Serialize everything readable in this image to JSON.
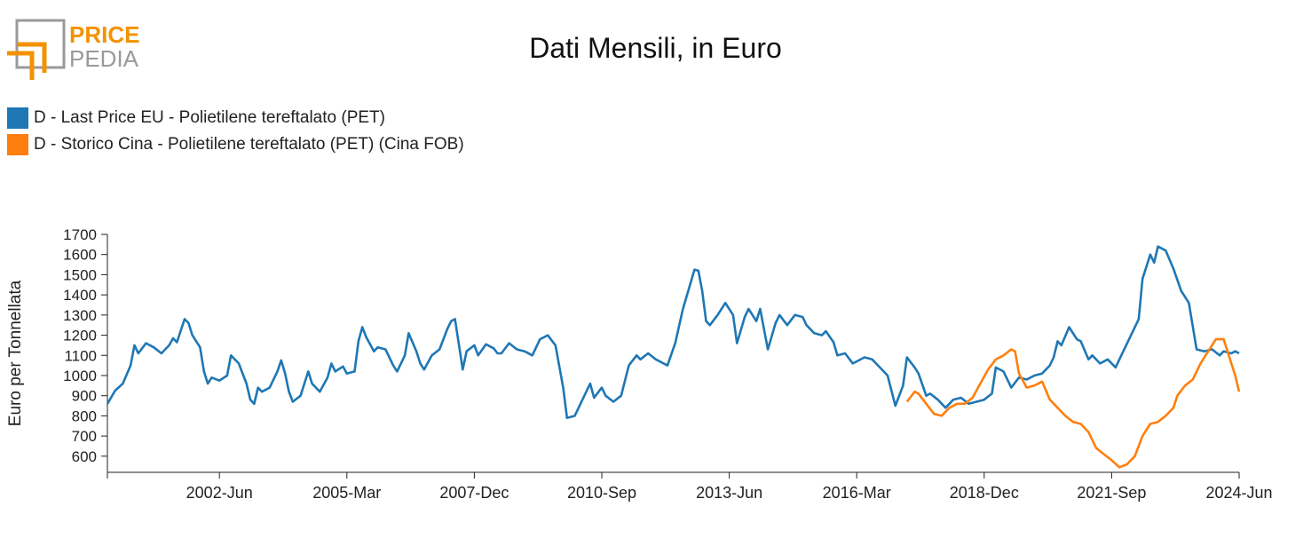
{
  "logo": {
    "word_top": "PRICE",
    "word_bottom": "PEDIA"
  },
  "colors": {
    "series_1": "#1f77b4",
    "series_2": "#ff7f0e",
    "logo_orange": "#f39200",
    "logo_grey": "#9a9a9a"
  },
  "chart_data": {
    "type": "line",
    "title": "Dati Mensili, in Euro",
    "xlabel": "",
    "ylabel": "Euro per Tonnellata",
    "x_start": "2000-01",
    "x_end": "2024-06",
    "xticks": [
      "2002-Jun",
      "2005-Mar",
      "2007-Dec",
      "2010-Sep",
      "2013-Jun",
      "2016-Mar",
      "2018-Dec",
      "2021-Sep",
      "2024-Jun"
    ],
    "ylim": [
      520,
      1700
    ],
    "yticks": [
      600,
      700,
      800,
      900,
      1000,
      1100,
      1200,
      1300,
      1400,
      1500,
      1600,
      1700
    ],
    "grid": false,
    "legend_position": "top-left",
    "series": [
      {
        "name": "D - Last Price EU - Polietilene tereftalato (PET)",
        "color": "#1f77b4",
        "points": [
          [
            "2000-01",
            860
          ],
          [
            "2000-03",
            925
          ],
          [
            "2000-05",
            960
          ],
          [
            "2000-07",
            1050
          ],
          [
            "2000-08",
            1150
          ],
          [
            "2000-09",
            1110
          ],
          [
            "2000-11",
            1160
          ],
          [
            "2001-01",
            1140
          ],
          [
            "2001-03",
            1110
          ],
          [
            "2001-05",
            1150
          ],
          [
            "2001-06",
            1185
          ],
          [
            "2001-07",
            1165
          ],
          [
            "2001-09",
            1280
          ],
          [
            "2001-10",
            1260
          ],
          [
            "2001-11",
            1200
          ],
          [
            "2002-01",
            1140
          ],
          [
            "2002-02",
            1020
          ],
          [
            "2002-03",
            960
          ],
          [
            "2002-04",
            990
          ],
          [
            "2002-06",
            975
          ],
          [
            "2002-08",
            1000
          ],
          [
            "2002-09",
            1100
          ],
          [
            "2002-11",
            1060
          ],
          [
            "2003-01",
            960
          ],
          [
            "2003-02",
            880
          ],
          [
            "2003-03",
            860
          ],
          [
            "2003-04",
            940
          ],
          [
            "2003-05",
            920
          ],
          [
            "2003-07",
            940
          ],
          [
            "2003-09",
            1020
          ],
          [
            "2003-10",
            1075
          ],
          [
            "2003-11",
            1010
          ],
          [
            "2003-12",
            920
          ],
          [
            "2004-01",
            870
          ],
          [
            "2004-03",
            900
          ],
          [
            "2004-05",
            1020
          ],
          [
            "2004-06",
            960
          ],
          [
            "2004-08",
            920
          ],
          [
            "2004-10",
            990
          ],
          [
            "2004-11",
            1060
          ],
          [
            "2004-12",
            1020
          ],
          [
            "2005-02",
            1045
          ],
          [
            "2005-03",
            1010
          ],
          [
            "2005-05",
            1020
          ],
          [
            "2005-06",
            1170
          ],
          [
            "2005-07",
            1240
          ],
          [
            "2005-08",
            1190
          ],
          [
            "2005-10",
            1120
          ],
          [
            "2005-11",
            1140
          ],
          [
            "2006-01",
            1130
          ],
          [
            "2006-03",
            1050
          ],
          [
            "2006-04",
            1020
          ],
          [
            "2006-06",
            1100
          ],
          [
            "2006-07",
            1210
          ],
          [
            "2006-09",
            1120
          ],
          [
            "2006-10",
            1060
          ],
          [
            "2006-11",
            1030
          ],
          [
            "2007-01",
            1100
          ],
          [
            "2007-03",
            1130
          ],
          [
            "2007-05",
            1230
          ],
          [
            "2007-06",
            1270
          ],
          [
            "2007-07",
            1280
          ],
          [
            "2007-09",
            1030
          ],
          [
            "2007-10",
            1120
          ],
          [
            "2007-12",
            1150
          ],
          [
            "2008-01",
            1100
          ],
          [
            "2008-03",
            1155
          ],
          [
            "2008-05",
            1135
          ],
          [
            "2008-06",
            1110
          ],
          [
            "2008-07",
            1110
          ],
          [
            "2008-09",
            1160
          ],
          [
            "2008-11",
            1130
          ],
          [
            "2009-01",
            1120
          ],
          [
            "2009-03",
            1100
          ],
          [
            "2009-05",
            1180
          ],
          [
            "2009-07",
            1200
          ],
          [
            "2009-09",
            1150
          ],
          [
            "2009-11",
            940
          ],
          [
            "2009-12",
            790
          ],
          [
            "2010-02",
            800
          ],
          [
            "2010-04",
            880
          ],
          [
            "2010-06",
            960
          ],
          [
            "2010-07",
            890
          ],
          [
            "2010-09",
            940
          ],
          [
            "2010-10",
            900
          ],
          [
            "2010-12",
            870
          ],
          [
            "2011-02",
            900
          ],
          [
            "2011-04",
            1050
          ],
          [
            "2011-06",
            1100
          ],
          [
            "2011-07",
            1080
          ],
          [
            "2011-09",
            1110
          ],
          [
            "2011-11",
            1080
          ],
          [
            "2012-01",
            1060
          ],
          [
            "2012-02",
            1050
          ],
          [
            "2012-04",
            1160
          ],
          [
            "2012-06",
            1330
          ],
          [
            "2012-08",
            1460
          ],
          [
            "2012-09",
            1525
          ],
          [
            "2012-10",
            1520
          ],
          [
            "2012-11",
            1420
          ],
          [
            "2012-12",
            1270
          ],
          [
            "2013-01",
            1250
          ],
          [
            "2013-03",
            1300
          ],
          [
            "2013-05",
            1360
          ],
          [
            "2013-07",
            1300
          ],
          [
            "2013-08",
            1160
          ],
          [
            "2013-10",
            1290
          ],
          [
            "2013-11",
            1330
          ],
          [
            "2014-01",
            1270
          ],
          [
            "2014-02",
            1330
          ],
          [
            "2014-04",
            1130
          ],
          [
            "2014-06",
            1260
          ],
          [
            "2014-07",
            1300
          ],
          [
            "2014-09",
            1250
          ],
          [
            "2014-11",
            1300
          ],
          [
            "2015-01",
            1290
          ],
          [
            "2015-02",
            1250
          ],
          [
            "2015-04",
            1210
          ],
          [
            "2015-06",
            1200
          ],
          [
            "2015-07",
            1220
          ],
          [
            "2015-09",
            1165
          ],
          [
            "2015-10",
            1100
          ],
          [
            "2015-12",
            1110
          ],
          [
            "2016-02",
            1060
          ],
          [
            "2016-03",
            1070
          ],
          [
            "2016-05",
            1090
          ],
          [
            "2016-07",
            1080
          ],
          [
            "2016-09",
            1040
          ],
          [
            "2016-11",
            1000
          ],
          [
            "2017-01",
            850
          ],
          [
            "2017-03",
            950
          ],
          [
            "2017-04",
            1090
          ],
          [
            "2017-06",
            1040
          ],
          [
            "2017-07",
            1010
          ],
          [
            "2017-09",
            900
          ],
          [
            "2017-10",
            910
          ],
          [
            "2017-12",
            880
          ],
          [
            "2018-02",
            840
          ],
          [
            "2018-04",
            880
          ],
          [
            "2018-06",
            890
          ],
          [
            "2018-08",
            860
          ],
          [
            "2018-10",
            870
          ],
          [
            "2018-12",
            880
          ],
          [
            "2019-02",
            910
          ],
          [
            "2019-03",
            1040
          ],
          [
            "2019-05",
            1020
          ],
          [
            "2019-07",
            940
          ],
          [
            "2019-09",
            990
          ],
          [
            "2019-11",
            980
          ],
          [
            "2020-01",
            1000
          ],
          [
            "2020-03",
            1010
          ],
          [
            "2020-05",
            1050
          ],
          [
            "2020-06",
            1090
          ],
          [
            "2020-07",
            1170
          ],
          [
            "2020-08",
            1150
          ],
          [
            "2020-10",
            1240
          ],
          [
            "2020-12",
            1180
          ],
          [
            "2021-01",
            1170
          ],
          [
            "2021-03",
            1080
          ],
          [
            "2021-04",
            1100
          ],
          [
            "2021-06",
            1060
          ],
          [
            "2021-08",
            1080
          ],
          [
            "2021-10",
            1040
          ],
          [
            "2021-12",
            1120
          ],
          [
            "2022-02",
            1200
          ],
          [
            "2022-04",
            1280
          ],
          [
            "2022-05",
            1480
          ],
          [
            "2022-07",
            1600
          ],
          [
            "2022-08",
            1560
          ],
          [
            "2022-09",
            1640
          ],
          [
            "2022-11",
            1620
          ],
          [
            "2023-01",
            1530
          ],
          [
            "2023-03",
            1420
          ],
          [
            "2023-05",
            1360
          ],
          [
            "2023-07",
            1130
          ],
          [
            "2023-09",
            1120
          ],
          [
            "2023-11",
            1130
          ],
          [
            "2024-01",
            1100
          ],
          [
            "2024-02",
            1120
          ],
          [
            "2024-04",
            1110
          ],
          [
            "2024-05",
            1120
          ],
          [
            "2024-06",
            1110
          ]
        ]
      },
      {
        "name": "D - Storico Cina - Polietilene tereftalato (PET) (Cina FOB)",
        "color": "#ff7f0e",
        "points": [
          [
            "2017-04",
            870
          ],
          [
            "2017-06",
            920
          ],
          [
            "2017-07",
            910
          ],
          [
            "2017-09",
            860
          ],
          [
            "2017-11",
            810
          ],
          [
            "2018-01",
            800
          ],
          [
            "2018-03",
            840
          ],
          [
            "2018-05",
            860
          ],
          [
            "2018-07",
            860
          ],
          [
            "2018-09",
            890
          ],
          [
            "2018-11",
            960
          ],
          [
            "2019-01",
            1030
          ],
          [
            "2019-03",
            1080
          ],
          [
            "2019-05",
            1100
          ],
          [
            "2019-07",
            1130
          ],
          [
            "2019-08",
            1120
          ],
          [
            "2019-09",
            1010
          ],
          [
            "2019-11",
            940
          ],
          [
            "2020-01",
            950
          ],
          [
            "2020-03",
            970
          ],
          [
            "2020-05",
            880
          ],
          [
            "2020-07",
            840
          ],
          [
            "2020-09",
            800
          ],
          [
            "2020-11",
            770
          ],
          [
            "2021-01",
            760
          ],
          [
            "2021-03",
            720
          ],
          [
            "2021-05",
            640
          ],
          [
            "2021-07",
            610
          ],
          [
            "2021-09",
            580
          ],
          [
            "2021-11",
            545
          ],
          [
            "2022-01",
            560
          ],
          [
            "2022-03",
            600
          ],
          [
            "2022-05",
            700
          ],
          [
            "2022-07",
            760
          ],
          [
            "2022-09",
            770
          ],
          [
            "2022-11",
            800
          ],
          [
            "2023-01",
            840
          ],
          [
            "2023-02",
            900
          ],
          [
            "2023-04",
            950
          ],
          [
            "2023-06",
            980
          ],
          [
            "2023-08",
            1060
          ],
          [
            "2023-10",
            1120
          ],
          [
            "2023-12",
            1180
          ],
          [
            "2024-02",
            1180
          ],
          [
            "2024-03",
            1120
          ],
          [
            "2024-05",
            1000
          ],
          [
            "2024-06",
            920
          ]
        ]
      }
    ]
  }
}
